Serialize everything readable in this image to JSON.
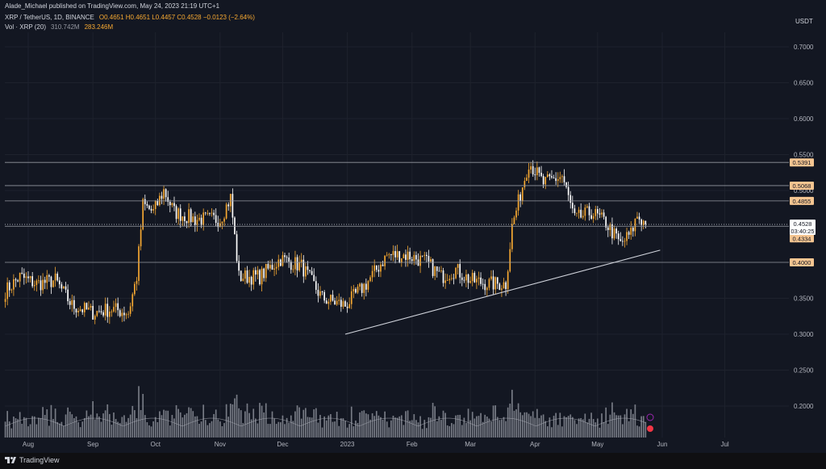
{
  "header": {
    "publisher": "Alade_Michael published on TradingView.com, May 24, 2023 21:19 UTC+1",
    "symbol": "XRP / TetherUS, 1D, BINANCE",
    "ohlc": "O0.4651 H0.4651 L0.4457 C0.4528 −0.0123 (−2.64%)",
    "vol_label": "Vol · XRP (20)",
    "vol_ma": "310.742M",
    "vol_value": "283.246M",
    "currency": "USDT"
  },
  "colors": {
    "background": "#131722",
    "up": "#f7a932",
    "down": "#ffffff",
    "grid": "#1e222d",
    "hline": "#9598a1",
    "badge": "#f5c591",
    "price_badge": "#ffffff"
  },
  "chart_data": {
    "type": "candlestick",
    "y_axis": {
      "min": 0.17,
      "max": 0.73,
      "ticks": [
        0.7,
        0.65,
        0.6,
        0.55,
        0.5,
        0.45,
        0.4,
        0.35,
        0.3,
        0.25,
        0.2
      ],
      "tick_labels": [
        "0.7000",
        "0.6500",
        "0.6000",
        "0.5500",
        "0.5000",
        "0.4500",
        "0.4000",
        "0.3500",
        "0.3000",
        "0.2500",
        "0.2000"
      ]
    },
    "x_axis": {
      "labels": [
        "Aug",
        "Sep",
        "Oct",
        "Nov",
        "Dec",
        "2023",
        "Feb",
        "Mar",
        "Apr",
        "May",
        "Jun",
        "Jul"
      ]
    },
    "horizontal_levels": [
      {
        "value": 0.5391,
        "label": "0.5391"
      },
      {
        "value": 0.5068,
        "label": "0.5068"
      },
      {
        "value": 0.4855,
        "label": "0.4855"
      },
      {
        "value": 0.4503,
        "label": "0.4503"
      },
      {
        "value": 0.4,
        "label": "0.4000"
      }
    ],
    "extra_badges": [
      {
        "value": 0.4334,
        "label": "0.4334"
      }
    ],
    "current_price": {
      "value": 0.4528,
      "label": "0.4528",
      "countdown": "03:40:25"
    },
    "trendline": {
      "start": {
        "date": "2022-12-31",
        "price": 0.3
      },
      "end": {
        "date": "2023-05-31",
        "price": 0.417
      }
    },
    "price_path": [
      {
        "date": "2022-07-21",
        "price": 0.36
      },
      {
        "date": "2022-07-28",
        "price": 0.38
      },
      {
        "date": "2022-08-05",
        "price": 0.37
      },
      {
        "date": "2022-08-14",
        "price": 0.375
      },
      {
        "date": "2022-08-22",
        "price": 0.34
      },
      {
        "date": "2022-09-01",
        "price": 0.33
      },
      {
        "date": "2022-09-10",
        "price": 0.335
      },
      {
        "date": "2022-09-18",
        "price": 0.33
      },
      {
        "date": "2022-09-22",
        "price": 0.38
      },
      {
        "date": "2022-09-25",
        "price": 0.48
      },
      {
        "date": "2022-09-30",
        "price": 0.47
      },
      {
        "date": "2022-10-05",
        "price": 0.5
      },
      {
        "date": "2022-10-10",
        "price": 0.47
      },
      {
        "date": "2022-10-20",
        "price": 0.46
      },
      {
        "date": "2022-11-01",
        "price": 0.46
      },
      {
        "date": "2022-11-06",
        "price": 0.49
      },
      {
        "date": "2022-11-10",
        "price": 0.38
      },
      {
        "date": "2022-11-20",
        "price": 0.38
      },
      {
        "date": "2022-11-30",
        "price": 0.405
      },
      {
        "date": "2022-12-10",
        "price": 0.395
      },
      {
        "date": "2022-12-20",
        "price": 0.35
      },
      {
        "date": "2022-12-31",
        "price": 0.34
      },
      {
        "date": "2023-01-10",
        "price": 0.37
      },
      {
        "date": "2023-01-20",
        "price": 0.41
      },
      {
        "date": "2023-01-30",
        "price": 0.41
      },
      {
        "date": "2023-02-08",
        "price": 0.4
      },
      {
        "date": "2023-02-15",
        "price": 0.38
      },
      {
        "date": "2023-02-22",
        "price": 0.39
      },
      {
        "date": "2023-03-01",
        "price": 0.375
      },
      {
        "date": "2023-03-10",
        "price": 0.37
      },
      {
        "date": "2023-03-18",
        "price": 0.37
      },
      {
        "date": "2023-03-21",
        "price": 0.45
      },
      {
        "date": "2023-03-29",
        "price": 0.54
      },
      {
        "date": "2023-04-05",
        "price": 0.51
      },
      {
        "date": "2023-04-14",
        "price": 0.52
      },
      {
        "date": "2023-04-20",
        "price": 0.46
      },
      {
        "date": "2023-04-28",
        "price": 0.47
      },
      {
        "date": "2023-05-05",
        "price": 0.455
      },
      {
        "date": "2023-05-12",
        "price": 0.425
      },
      {
        "date": "2023-05-17",
        "price": 0.44
      },
      {
        "date": "2023-05-20",
        "price": 0.465
      },
      {
        "date": "2023-05-24",
        "price": 0.4528
      }
    ]
  },
  "footer": {
    "brand": "TradingView"
  }
}
